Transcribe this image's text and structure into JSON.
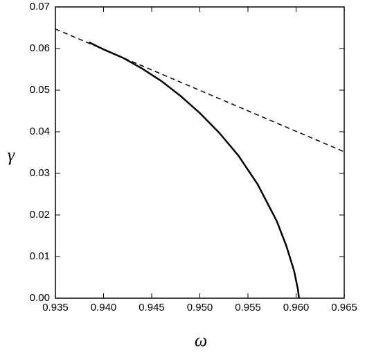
{
  "chart_data": {
    "type": "line",
    "x_label": "ω",
    "y_label": "γ",
    "xlim": [
      0.935,
      0.965
    ],
    "xticks": [
      0.935,
      {
        "value": 0.94,
        "label": "0.940"
      },
      0.945,
      {
        "value": 0.95,
        "label": "0.950"
      },
      0.955,
      {
        "value": 0.96,
        "label": "0.960"
      },
      0.965
    ],
    "ylim": [
      0,
      0.07
    ],
    "yticks": [
      {
        "value": 0,
        "label": "0.00"
      },
      0.01,
      0.02,
      0.03,
      0.04,
      0.05,
      0.06,
      0.07
    ],
    "series": [
      {
        "color": "#000000",
        "style": "solid",
        "x": [
          0.9385,
          0.94,
          0.942,
          0.944,
          0.946,
          0.948,
          0.95,
          0.952,
          0.954,
          0.956,
          0.958,
          0.959,
          0.9598,
          0.9602,
          0.9603
        ],
        "values": [
          0.0615,
          0.0598,
          0.0578,
          0.0552,
          0.0522,
          0.0486,
          0.0445,
          0.0398,
          0.0343,
          0.0274,
          0.0185,
          0.0125,
          0.0065,
          0.002,
          0
        ]
      },
      {
        "color": "#000000",
        "style": "dashed",
        "x": [
          0.935,
          0.965
        ],
        "values": [
          0.0647,
          0.0352
        ]
      }
    ]
  }
}
